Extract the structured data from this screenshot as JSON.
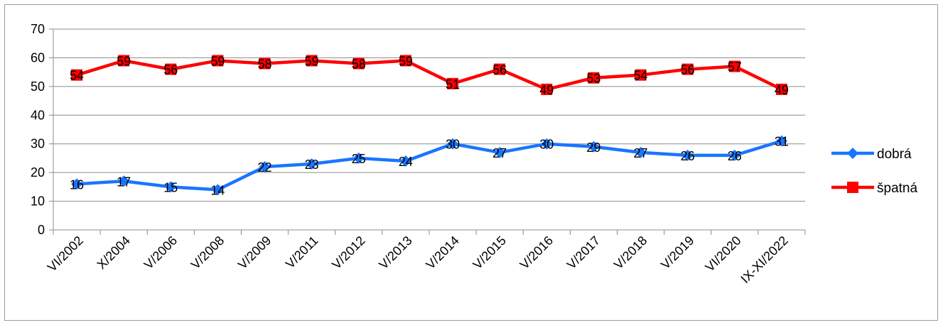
{
  "chart_data": {
    "type": "line",
    "title": "",
    "xlabel": "",
    "ylabel": "",
    "ylim": [
      0,
      70
    ],
    "yticks": [
      0,
      10,
      20,
      30,
      40,
      50,
      60,
      70
    ],
    "grid": true,
    "legend_position": "right",
    "categories": [
      "VI/2002",
      "X/2004",
      "V/2006",
      "V/2008",
      "V/2009",
      "V/2011",
      "V/2012",
      "V/2013",
      "V/2014",
      "V/2015",
      "V/2016",
      "V/2017",
      "V/2018",
      "V/2019",
      "VI/2020",
      "IX-XI/2022"
    ],
    "series": [
      {
        "name": "dobrá",
        "color": "#1a75ff",
        "marker": "diamond",
        "values": [
          16,
          17,
          15,
          14,
          22,
          23,
          25,
          24,
          30,
          27,
          30,
          29,
          27,
          26,
          26,
          31
        ]
      },
      {
        "name": "špatná",
        "color": "#ff0000",
        "marker": "square",
        "values": [
          54,
          59,
          56,
          59,
          58,
          59,
          58,
          59,
          51,
          56,
          49,
          53,
          54,
          56,
          57,
          49
        ]
      }
    ]
  }
}
